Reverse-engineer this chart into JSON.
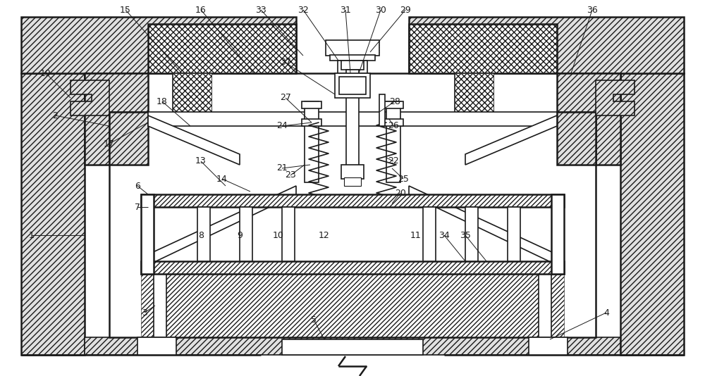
{
  "bg_color": "#ffffff",
  "lc": "#1a1a1a",
  "fig_width": 10.0,
  "fig_height": 5.34,
  "fs": 9
}
